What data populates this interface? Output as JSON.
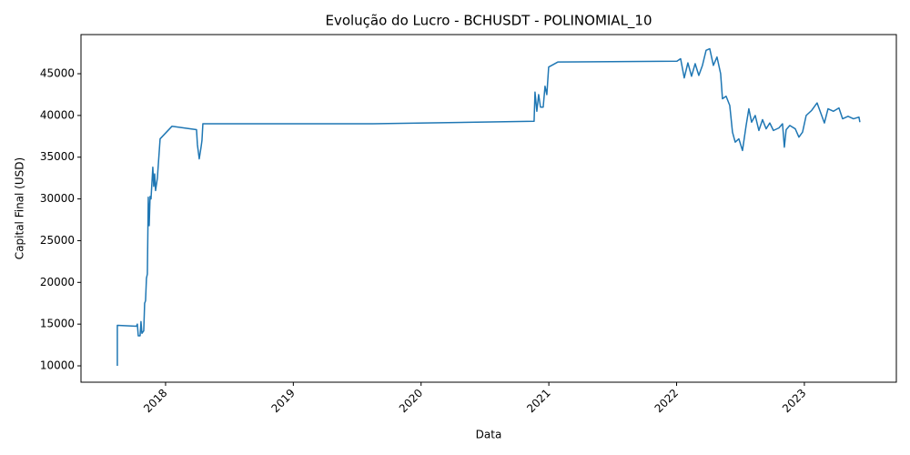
{
  "chart_data": {
    "type": "line",
    "title": "Evolução do Lucro - BCHUSDT - POLINOMIAL_10",
    "x_label": "Data",
    "y_label": "Capital Final (USD)",
    "color": "#1f77b4",
    "grid": false,
    "x": [
      2017.6225,
      2017.6225,
      2017.7721,
      2017.7792,
      2017.7863,
      2017.8006,
      2017.8077,
      2017.8148,
      2017.8291,
      2017.8362,
      2017.8433,
      2017.8504,
      2017.8575,
      2017.8647,
      2017.8718,
      2017.8789,
      2017.886,
      2017.9003,
      2017.9074,
      2017.9145,
      2017.9217,
      2017.9359,
      2017.9573,
      2018.0499,
      2018.2422,
      2018.2493,
      2018.2635,
      2018.2778,
      2018.2849,
      2018.292,
      2019.6239,
      2020.8846,
      2020.8917,
      2020.906,
      2020.9202,
      2020.9345,
      2020.9558,
      2020.9701,
      2020.9843,
      2020.9986,
      2021.0698,
      2022.0028,
      2022.0313,
      2022.0598,
      2022.0883,
      2022.1168,
      2022.1453,
      2022.1738,
      2022.2023,
      2022.2308,
      2022.2593,
      2022.2877,
      2022.3162,
      2022.3447,
      2022.359,
      2022.3875,
      2022.416,
      2022.4373,
      2022.4587,
      2022.4872,
      2022.5157,
      2022.5442,
      2022.5655,
      2022.5869,
      2022.6154,
      2022.6439,
      2022.6724,
      2022.7009,
      2022.7293,
      2022.7578,
      2022.8006,
      2022.8291,
      2022.8433,
      2022.8575,
      2022.886,
      2022.9288,
      2022.9573,
      2022.9858,
      2023.0142,
      2023.057,
      2023.0997,
      2023.1282,
      2023.1567,
      2023.1852,
      2023.2279,
      2023.2707,
      2023.2991,
      2023.3419,
      2023.3846,
      2023.4274,
      2023.4345
    ],
    "values": [
      10000,
      14850,
      14750,
      15000,
      13600,
      13600,
      15300,
      13900,
      14200,
      17500,
      17800,
      20500,
      21000,
      30200,
      26800,
      30300,
      30000,
      33800,
      31500,
      33000,
      31000,
      32500,
      37200,
      38700,
      38300,
      36500,
      34800,
      36200,
      37000,
      39000,
      39000,
      39300,
      42800,
      40500,
      42500,
      41000,
      41000,
      43500,
      42500,
      45800,
      46400,
      46500,
      46800,
      44500,
      46300,
      44700,
      46200,
      44800,
      46000,
      47800,
      48000,
      46000,
      47000,
      45000,
      42000,
      42300,
      41200,
      38000,
      36800,
      37200,
      35800,
      38800,
      40800,
      39200,
      40000,
      38200,
      39500,
      38400,
      39100,
      38200,
      38500,
      39000,
      36200,
      38300,
      38800,
      38400,
      37400,
      38000,
      40000,
      40600,
      41500,
      40300,
      39100,
      40800,
      40500,
      40900,
      39600,
      39900,
      39600,
      39800,
      39200
    ],
    "xlim": [
      2017.338,
      2023.72
    ],
    "xticks": [
      2018,
      2019,
      2020,
      2021,
      2022,
      2023
    ],
    "ylim": [
      8040,
      49690
    ],
    "yticks": [
      10000,
      15000,
      20000,
      25000,
      30000,
      35000,
      40000,
      45000
    ]
  }
}
